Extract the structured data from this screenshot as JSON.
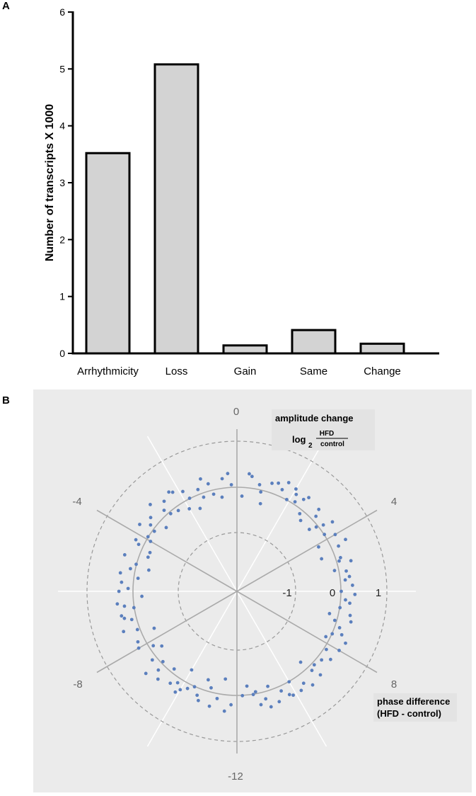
{
  "panel_a_letter": "A",
  "panel_b_letter": "B",
  "chart_data": [
    {
      "type": "bar",
      "ylabel": "Number of transcripts X 1000",
      "xlabel": "",
      "ylim": [
        0,
        6
      ],
      "yticks": [
        "0",
        "1",
        "2",
        "3",
        "4",
        "5",
        "6"
      ],
      "categories": [
        "Arrhythmicity",
        "Loss",
        "Gain",
        "Same",
        "Change"
      ],
      "values": [
        3.52,
        5.08,
        0.14,
        0.41,
        0.17
      ],
      "bar_color": "#d3d3d3",
      "edge_color": "#000000"
    },
    {
      "type": "scatter",
      "subtype": "polar",
      "phase_labels": [
        "0",
        "4",
        "8",
        "-12",
        "-8",
        "-4"
      ],
      "ring_labels": [
        "-1",
        "0",
        "1"
      ],
      "rlim": [
        -2,
        1
      ],
      "amplitude_title": "amplitude change",
      "amplitude_log_prefix": "log",
      "amplitude_log_base": "2",
      "amplitude_numerator": "HFD",
      "amplitude_denominator": "control",
      "phase_title_line1": "phase difference",
      "phase_title_line2": "(HFD - control)",
      "background_color": "#ebebeb",
      "point_color": "#5b7fbd",
      "points_phase_amp": [
        [
          -9.9,
          0.3
        ],
        [
          -10.2,
          0.1
        ],
        [
          -10.6,
          0.15
        ],
        [
          -11.1,
          0.3
        ],
        [
          -11.5,
          -0.35
        ],
        [
          -11.8,
          0.2
        ],
        [
          11.6,
          -0.2
        ],
        [
          11.2,
          0.25
        ],
        [
          10.8,
          -0.1
        ],
        [
          10.4,
          0.1
        ],
        [
          9.8,
          0.3
        ],
        [
          9.4,
          0.35
        ],
        [
          9.0,
          0.3
        ],
        [
          8.6,
          0.1
        ],
        [
          8.2,
          0.05
        ],
        [
          7.8,
          -0.1
        ],
        [
          7.3,
          0.1
        ],
        [
          7.0,
          0.3
        ],
        [
          6.8,
          0.25
        ],
        [
          6.3,
          0.1
        ],
        [
          6.0,
          0.0
        ],
        [
          5.5,
          0.2
        ],
        [
          5.2,
          -0.1
        ],
        [
          4.8,
          0.1
        ],
        [
          4.4,
          0.15
        ],
        [
          4.0,
          0.2
        ],
        [
          3.5,
          0.1
        ],
        [
          3.0,
          0.25
        ],
        [
          2.8,
          -0.2
        ],
        [
          2.4,
          0.2
        ],
        [
          2.0,
          0.3
        ],
        [
          1.6,
          0.15
        ],
        [
          1.2,
          0.2
        ],
        [
          0.8,
          0.1
        ],
        [
          -0.5,
          0.2
        ],
        [
          -1.0,
          0.15
        ],
        [
          -1.3,
          -0.1
        ],
        [
          -1.8,
          0.0
        ],
        [
          -2.2,
          0.3
        ],
        [
          -2.6,
          0.25
        ],
        [
          -3.0,
          0.4
        ],
        [
          -3.5,
          0.1
        ],
        [
          -3.9,
          0.0
        ],
        [
          -4.4,
          -0.2
        ],
        [
          -4.8,
          0.3
        ],
        [
          -5.2,
          0.1
        ],
        [
          -5.5,
          -0.1
        ],
        [
          -5.9,
          0.1
        ],
        [
          -6.2,
          -0.2
        ],
        [
          -6.5,
          0.2
        ],
        [
          -6.9,
          0.25
        ],
        [
          -7.3,
          0.35
        ],
        [
          -7.8,
          0.15
        ],
        [
          -8.2,
          -0.1
        ],
        [
          -8.6,
          0.1
        ],
        [
          -9.0,
          0.15
        ],
        [
          -9.4,
          -0.1
        ],
        [
          -10.0,
          -0.3
        ],
        [
          -10.8,
          -0.25
        ],
        [
          -11.3,
          0.1
        ],
        [
          -9.6,
          0.2
        ],
        [
          -8.8,
          0.4
        ],
        [
          -7.6,
          -0.3
        ],
        [
          -6.6,
          0.0
        ],
        [
          -5.7,
          0.25
        ],
        [
          -4.6,
          -0.2
        ],
        [
          -3.2,
          -0.2
        ],
        [
          -2.4,
          -0.1
        ],
        [
          -1.6,
          -0.3
        ],
        [
          -0.9,
          -0.1
        ],
        [
          0.2,
          -0.2
        ],
        [
          1.0,
          -0.3
        ],
        [
          1.9,
          0.0
        ],
        [
          2.6,
          -0.1
        ],
        [
          3.3,
          -0.2
        ],
        [
          4.1,
          -0.25
        ],
        [
          5.0,
          0.3
        ],
        [
          5.8,
          0.25
        ],
        [
          6.6,
          0.0
        ],
        [
          7.5,
          0.2
        ],
        [
          8.4,
          0.25
        ],
        [
          9.2,
          -0.2
        ],
        [
          10.0,
          0.0
        ],
        [
          10.6,
          0.3
        ],
        [
          11.4,
          0.0
        ],
        [
          -11.0,
          -0.1
        ],
        [
          -10.4,
          0.0
        ],
        [
          -9.2,
          0.3
        ],
        [
          -8.4,
          -0.25
        ],
        [
          -7.0,
          0.1
        ],
        [
          -6.0,
          0.3
        ],
        [
          -5.0,
          0.0
        ],
        [
          -4.2,
          0.2
        ],
        [
          -3.7,
          0.3
        ],
        [
          -2.8,
          0.1
        ],
        [
          -2.0,
          -0.2
        ],
        [
          -1.2,
          0.3
        ],
        [
          -0.2,
          0.05
        ],
        [
          0.5,
          0.25
        ],
        [
          1.4,
          0.25
        ],
        [
          2.2,
          0.05
        ],
        [
          3.1,
          0.1
        ],
        [
          3.8,
          0.0
        ],
        [
          4.6,
          -0.3
        ],
        [
          5.3,
          0.15
        ],
        [
          6.1,
          0.3
        ],
        [
          6.9,
          -0.2
        ],
        [
          7.7,
          0.35
        ],
        [
          8.9,
          0.05
        ],
        [
          9.6,
          0.2
        ],
        [
          10.2,
          0.25
        ],
        [
          11.0,
          0.15
        ],
        [
          11.8,
          0.0
        ],
        [
          -11.6,
          0.35
        ],
        [
          -10.0,
          0.2
        ],
        [
          -8.0,
          0.2
        ],
        [
          -6.4,
          0.35
        ],
        [
          -5.4,
          0.3
        ],
        [
          -4.0,
          -0.1
        ],
        [
          -3.3,
          0.2
        ],
        [
          -2.3,
          0.35
        ],
        [
          -1.4,
          0.1
        ],
        [
          -0.6,
          -0.2
        ],
        [
          0.4,
          0.3
        ],
        [
          1.7,
          0.35
        ],
        [
          2.5,
          0.3
        ],
        [
          3.6,
          0.3
        ],
        [
          4.3,
          0.35
        ],
        [
          5.6,
          0.1
        ],
        [
          7.1,
          -0.05
        ],
        [
          8.0,
          0.3
        ],
        [
          9.1,
          0.1
        ],
        [
          10.1,
          0.3
        ],
        [
          10.9,
          0.35
        ],
        [
          11.3,
          -0.05
        ],
        [
          -10.7,
          0.25
        ],
        [
          -9.8,
          0.1
        ],
        [
          -8.9,
          -0.05
        ],
        [
          -7.4,
          0.05
        ],
        [
          -6.8,
          0.3
        ],
        [
          -5.1,
          -0.3
        ],
        [
          -4.3,
          0.1
        ],
        [
          -3.6,
          -0.05
        ],
        [
          -2.7,
          -0.05
        ],
        [
          -1.9,
          0.2
        ],
        [
          -0.3,
          0.3
        ],
        [
          0.9,
          -0.05
        ],
        [
          2.1,
          0.2
        ],
        [
          3.4,
          -0.05
        ],
        [
          4.9,
          0.05
        ],
        [
          6.4,
          0.2
        ],
        [
          7.6,
          0.0
        ]
      ]
    }
  ]
}
